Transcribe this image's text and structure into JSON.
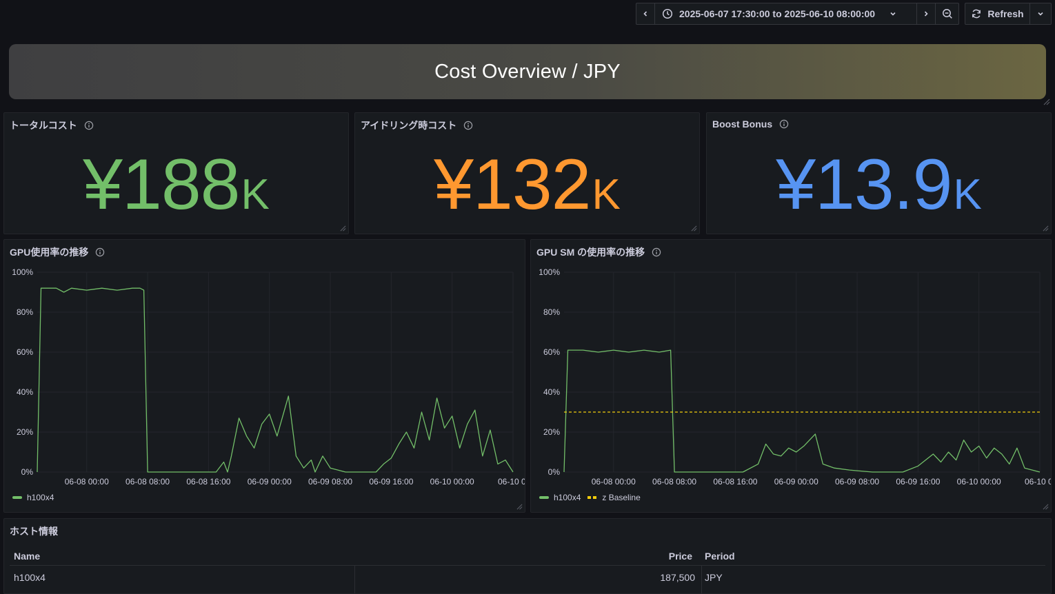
{
  "toolbar": {
    "time_range": "2025-06-07 17:30:00 to 2025-06-10 08:00:00",
    "refresh_label": "Refresh"
  },
  "banner": {
    "title": "Cost Overview / JPY"
  },
  "stats": [
    {
      "title": "トータルコスト",
      "value": "¥188",
      "unit": "K",
      "color": "#73bf69"
    },
    {
      "title": "アイドリング時コスト",
      "value": "¥132",
      "unit": "K",
      "color": "#ff9830"
    },
    {
      "title": "Boost Bonus",
      "value": "¥13.9",
      "unit": "K",
      "color": "#5794f2"
    }
  ],
  "chart_data": [
    {
      "type": "line",
      "title": "GPU使用率の推移",
      "x_ticks": [
        "06-08 00:00",
        "06-08 08:00",
        "06-08 16:00",
        "06-09 00:00",
        "06-09 08:00",
        "06-09 16:00",
        "06-10 00:00",
        "06-10 0"
      ],
      "y_ticks": [
        "0%",
        "20%",
        "40%",
        "60%",
        "80%",
        "100%"
      ],
      "ylim": [
        0,
        100
      ],
      "x_range": [
        "2025-06-07 17:30",
        "2025-06-10 08:00"
      ],
      "series": [
        {
          "name": "h100x4",
          "color": "#73bf69",
          "points": [
            [
              "2025-06-07 17:30",
              0
            ],
            [
              "2025-06-07 18:00",
              92
            ],
            [
              "2025-06-07 20:00",
              92
            ],
            [
              "2025-06-07 21:00",
              90
            ],
            [
              "2025-06-07 22:00",
              92
            ],
            [
              "2025-06-08 00:00",
              91
            ],
            [
              "2025-06-08 02:00",
              92
            ],
            [
              "2025-06-08 04:00",
              91
            ],
            [
              "2025-06-08 06:00",
              92
            ],
            [
              "2025-06-08 07:00",
              92
            ],
            [
              "2025-06-08 07:30",
              91
            ],
            [
              "2025-06-08 08:00",
              0
            ],
            [
              "2025-06-08 17:00",
              0
            ],
            [
              "2025-06-08 18:00",
              5
            ],
            [
              "2025-06-08 18:30",
              0
            ],
            [
              "2025-06-08 19:00",
              8
            ],
            [
              "2025-06-08 20:00",
              27
            ],
            [
              "2025-06-08 21:00",
              18
            ],
            [
              "2025-06-08 22:00",
              12
            ],
            [
              "2025-06-08 23:00",
              24
            ],
            [
              "2025-06-09 00:00",
              29
            ],
            [
              "2025-06-09 01:00",
              18
            ],
            [
              "2025-06-09 02:30",
              38
            ],
            [
              "2025-06-09 03:30",
              8
            ],
            [
              "2025-06-09 04:30",
              2
            ],
            [
              "2025-06-09 05:30",
              6
            ],
            [
              "2025-06-09 06:00",
              0
            ],
            [
              "2025-06-09 07:00",
              8
            ],
            [
              "2025-06-09 08:00",
              2
            ],
            [
              "2025-06-09 10:00",
              0
            ],
            [
              "2025-06-09 14:00",
              0
            ],
            [
              "2025-06-09 15:00",
              4
            ],
            [
              "2025-06-09 16:00",
              7
            ],
            [
              "2025-06-09 17:00",
              14
            ],
            [
              "2025-06-09 18:00",
              20
            ],
            [
              "2025-06-09 19:00",
              12
            ],
            [
              "2025-06-09 20:00",
              30
            ],
            [
              "2025-06-09 21:00",
              16
            ],
            [
              "2025-06-09 22:00",
              37
            ],
            [
              "2025-06-09 23:00",
              22
            ],
            [
              "2025-06-10 00:00",
              28
            ],
            [
              "2025-06-10 01:00",
              12
            ],
            [
              "2025-06-10 02:00",
              24
            ],
            [
              "2025-06-10 03:00",
              31
            ],
            [
              "2025-06-10 04:00",
              8
            ],
            [
              "2025-06-10 05:00",
              21
            ],
            [
              "2025-06-10 06:00",
              4
            ],
            [
              "2025-06-10 07:00",
              6
            ],
            [
              "2025-06-10 08:00",
              0
            ]
          ]
        }
      ]
    },
    {
      "type": "line",
      "title": "GPU SM の使用率の推移",
      "x_ticks": [
        "06-08 00:00",
        "06-08 08:00",
        "06-08 16:00",
        "06-09 00:00",
        "06-09 08:00",
        "06-09 16:00",
        "06-10 00:00",
        "06-10 0"
      ],
      "y_ticks": [
        "0%",
        "20%",
        "40%",
        "60%",
        "80%",
        "100%"
      ],
      "ylim": [
        0,
        100
      ],
      "x_range": [
        "2025-06-07 17:30",
        "2025-06-10 08:00"
      ],
      "series": [
        {
          "name": "h100x4",
          "color": "#73bf69",
          "points": [
            [
              "2025-06-07 17:30",
              0
            ],
            [
              "2025-06-07 18:00",
              61
            ],
            [
              "2025-06-07 20:00",
              61
            ],
            [
              "2025-06-07 22:00",
              60
            ],
            [
              "2025-06-08 00:00",
              61
            ],
            [
              "2025-06-08 02:00",
              60
            ],
            [
              "2025-06-08 04:00",
              61
            ],
            [
              "2025-06-08 06:00",
              60
            ],
            [
              "2025-06-08 07:30",
              61
            ],
            [
              "2025-06-08 08:00",
              0
            ],
            [
              "2025-06-08 17:00",
              0
            ],
            [
              "2025-06-08 19:00",
              4
            ],
            [
              "2025-06-08 20:00",
              14
            ],
            [
              "2025-06-08 21:00",
              9
            ],
            [
              "2025-06-08 22:00",
              8
            ],
            [
              "2025-06-08 23:00",
              12
            ],
            [
              "2025-06-09 00:00",
              10
            ],
            [
              "2025-06-09 01:00",
              13
            ],
            [
              "2025-06-09 02:30",
              19
            ],
            [
              "2025-06-09 03:30",
              4
            ],
            [
              "2025-06-09 05:00",
              2
            ],
            [
              "2025-06-09 07:00",
              1
            ],
            [
              "2025-06-09 10:00",
              0
            ],
            [
              "2025-06-09 14:00",
              0
            ],
            [
              "2025-06-09 16:00",
              3
            ],
            [
              "2025-06-09 18:00",
              9
            ],
            [
              "2025-06-09 19:00",
              5
            ],
            [
              "2025-06-09 20:00",
              10
            ],
            [
              "2025-06-09 21:00",
              6
            ],
            [
              "2025-06-09 22:00",
              16
            ],
            [
              "2025-06-09 23:00",
              10
            ],
            [
              "2025-06-10 00:00",
              13
            ],
            [
              "2025-06-10 01:00",
              7
            ],
            [
              "2025-06-10 02:00",
              12
            ],
            [
              "2025-06-10 03:00",
              9
            ],
            [
              "2025-06-10 04:00",
              4
            ],
            [
              "2025-06-10 05:00",
              12
            ],
            [
              "2025-06-10 06:00",
              2
            ],
            [
              "2025-06-10 08:00",
              0
            ]
          ]
        },
        {
          "name": "z Baseline",
          "color": "#f2cc0c",
          "dashed": true,
          "points": [
            [
              "2025-06-07 17:30",
              30
            ],
            [
              "2025-06-10 08:00",
              30
            ]
          ]
        }
      ]
    }
  ],
  "host_table": {
    "title": "ホスト情報",
    "headers": {
      "name": "Name",
      "price": "Price",
      "period": "Period"
    },
    "rows": [
      {
        "name": "h100x4",
        "price": "187,500",
        "period": "JPY"
      }
    ]
  }
}
